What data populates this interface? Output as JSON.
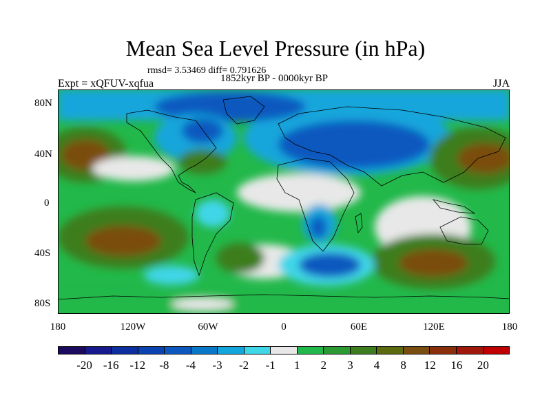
{
  "title": "Mean Sea Level Pressure (in hPa)",
  "stats": "rmsd= 3.53469 diff= 0.791626",
  "period": "1852kyr BP - 0000kyr BP",
  "experiment": "Expt = xQFUV-xqfua",
  "season": "JJA",
  "axes": {
    "y_labels": [
      "80N",
      "40N",
      "0",
      "40S",
      "80S"
    ],
    "x_labels": [
      "180",
      "120W",
      "60W",
      "0",
      "60E",
      "120E",
      "180"
    ]
  },
  "colorbar": {
    "labels": [
      "-20",
      "-16",
      "-12",
      "-8",
      "-4",
      "-3",
      "-2",
      "-1",
      "1",
      "2",
      "3",
      "4",
      "8",
      "12",
      "16",
      "20"
    ],
    "colors": [
      "#1c0a5e",
      "#161a8c",
      "#0d2e9e",
      "#0b43b0",
      "#0c58bf",
      "#0a78c9",
      "#13a6dc",
      "#3fd6e8",
      "#e8e8e8",
      "#22b84a",
      "#2c9a32",
      "#3d7d1f",
      "#5c6a10",
      "#7a4e10",
      "#8a2e0c",
      "#a1180a",
      "#c00000"
    ]
  },
  "map": {
    "background_value_color": "#e8e8e8",
    "coastline_color": "#000000"
  }
}
